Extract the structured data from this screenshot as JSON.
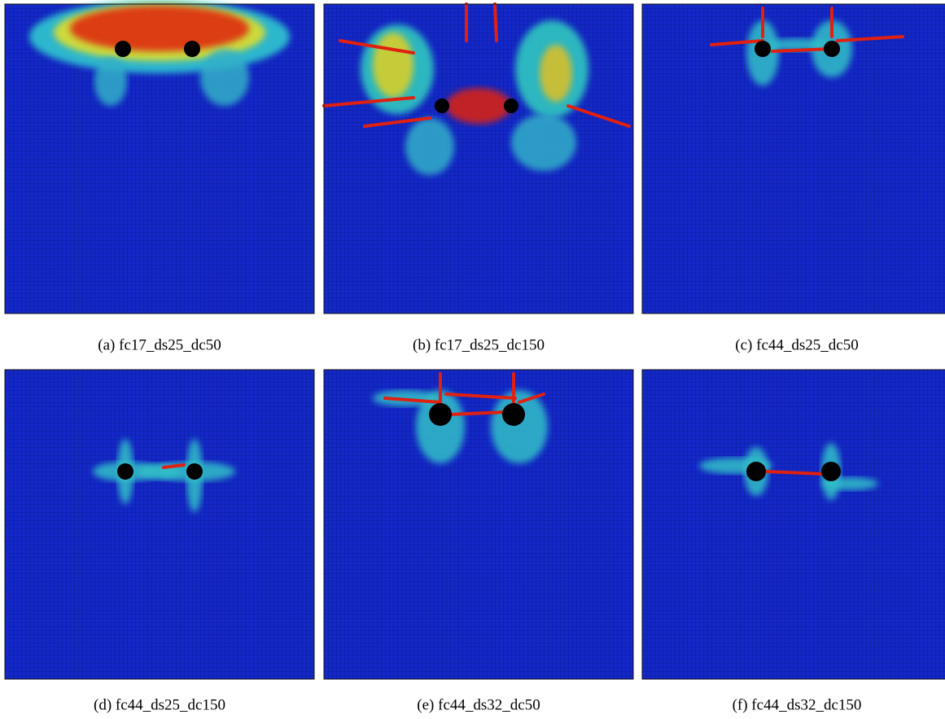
{
  "figure": {
    "panels": [
      {
        "caption": "(a) fc17_ds25_dc50"
      },
      {
        "caption": "(b) fc17_ds25_dc150"
      },
      {
        "caption": "(c) fc44_ds25_dc50"
      },
      {
        "caption": "(d) fc44_ds25_dc150"
      },
      {
        "caption": "(e) fc44_ds32_dc50"
      },
      {
        "caption": "(f) fc44_ds32_dc150"
      }
    ]
  }
}
